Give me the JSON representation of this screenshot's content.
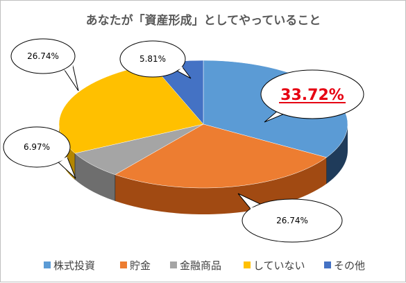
{
  "chart_data": {
    "type": "pie",
    "title": "あなたが「資産形成」としてやっていること",
    "categories": [
      "株式投資",
      "貯金",
      "金融商品",
      "していない",
      "その他"
    ],
    "values": [
      33.72,
      26.74,
      6.97,
      26.74,
      5.81
    ],
    "data_labels": [
      "33.72%",
      "26.74%",
      "6.97%",
      "26.74%",
      "5.81%"
    ],
    "highlight_index": 0,
    "colors": [
      "#5b9bd5",
      "#ed7d31",
      "#a5a5a5",
      "#ffc000",
      "#4472c4"
    ],
    "dark_colors": [
      "#1f3b5a",
      "#a14a12",
      "#6e6e6e",
      "#b38600",
      "#2c4a80"
    ],
    "legend_position": "bottom"
  }
}
